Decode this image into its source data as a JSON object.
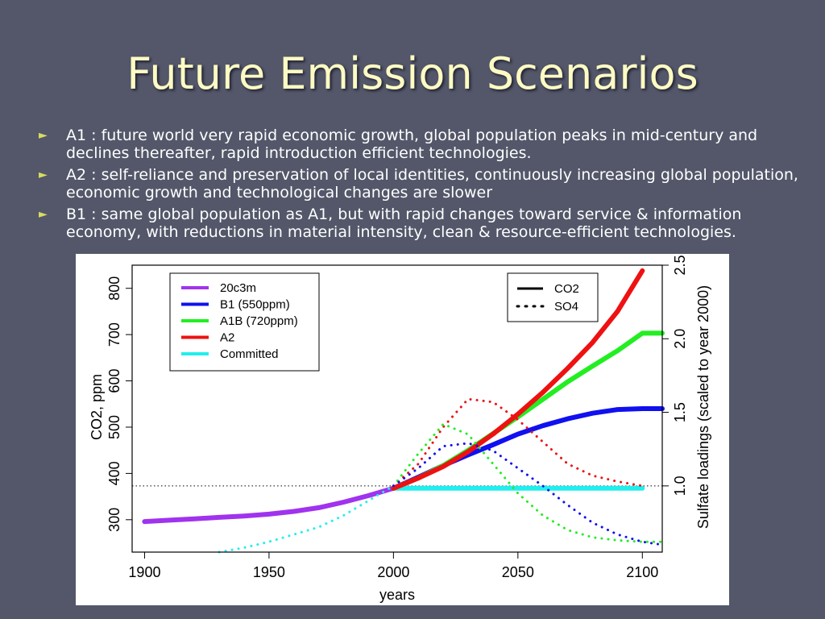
{
  "slide": {
    "title": "Future Emission Scenarios",
    "bullets": [
      "A1 : future world very rapid economic growth, global population peaks in mid-century and declines thereafter, rapid introduction efficient technologies.",
      "A2 : self-reliance and preservation of local identities, continuously increasing global population, economic growth and technological changes are slower",
      "B1 : same global population as A1, but with rapid changes toward service & information economy, with reductions in material intensity, clean & resource-efficient technologies."
    ],
    "bullet_marker": "►"
  },
  "colors": {
    "background": "#535769",
    "title": "#fdfbc3",
    "bullet_marker": "#d7dc63",
    "text": "#ffffff"
  },
  "chart_data": {
    "type": "line",
    "xlabel": "years",
    "ylabel": "CO2, ppm",
    "y2label": "Sulfate loadings (scaled to year 2000)",
    "xlim": [
      1895,
      2108
    ],
    "ylim": [
      230,
      850
    ],
    "y2lim": [
      0.55,
      2.5
    ],
    "x_ticks": [
      1900,
      1950,
      2000,
      2050,
      2100
    ],
    "y_ticks": [
      300,
      400,
      500,
      600,
      700,
      800
    ],
    "y2_ticks": [
      "1.0",
      "1.5",
      "2.0",
      "2.5"
    ],
    "reference_line": {
      "sulfate": 1.0,
      "style": "dotted"
    },
    "legend_scenarios": {
      "position": "top-left",
      "entries": [
        {
          "label": "20c3m",
          "color": "#a033ee"
        },
        {
          "label": "B1 (550ppm)",
          "color": "#1010f0"
        },
        {
          "label": "A1B (720ppm)",
          "color": "#22ee22"
        },
        {
          "label": "A2",
          "color": "#ee1111"
        },
        {
          "label": "Committed",
          "color": "#22eeee"
        }
      ]
    },
    "legend_quantities": {
      "position": "top-right",
      "entries": [
        {
          "label": "CO2",
          "style": "solid"
        },
        {
          "label": "SO4",
          "style": "dotted"
        }
      ]
    },
    "series": [
      {
        "name": "20c3m",
        "quantity": "CO2",
        "color": "#a033ee",
        "x": [
          1900,
          1910,
          1920,
          1930,
          1940,
          1950,
          1960,
          1970,
          1980,
          1990,
          2000
        ],
        "y": [
          296,
          299,
          302,
          305,
          308,
          312,
          318,
          326,
          338,
          352,
          368
        ]
      },
      {
        "name": "Committed",
        "quantity": "CO2",
        "color": "#22eeee",
        "x": [
          2000,
          2100
        ],
        "y": [
          368,
          368
        ]
      },
      {
        "name": "B1 (550ppm)",
        "quantity": "CO2",
        "color": "#1010f0",
        "x": [
          2000,
          2010,
          2020,
          2030,
          2040,
          2050,
          2060,
          2070,
          2080,
          2090,
          2100,
          2108
        ],
        "y": [
          368,
          392,
          417,
          440,
          462,
          485,
          503,
          518,
          530,
          538,
          540,
          540
        ]
      },
      {
        "name": "A1B (720ppm)",
        "quantity": "CO2",
        "color": "#22ee22",
        "x": [
          2000,
          2010,
          2020,
          2030,
          2040,
          2050,
          2060,
          2070,
          2080,
          2090,
          2100,
          2108
        ],
        "y": [
          368,
          390,
          417,
          450,
          486,
          522,
          560,
          598,
          632,
          665,
          703,
          703
        ]
      },
      {
        "name": "A2",
        "quantity": "CO2",
        "color": "#ee1111",
        "x": [
          2000,
          2010,
          2020,
          2030,
          2040,
          2050,
          2060,
          2070,
          2080,
          2090,
          2100
        ],
        "y": [
          368,
          390,
          415,
          447,
          485,
          528,
          575,
          627,
          683,
          750,
          838
        ]
      },
      {
        "name": "Committed",
        "quantity": "SO4",
        "color": "#22eeee",
        "x": [
          1930,
          1940,
          1950,
          1960,
          1970,
          1980,
          1990,
          2000
        ],
        "y": [
          0.55,
          0.58,
          0.62,
          0.67,
          0.72,
          0.8,
          0.9,
          1.0
        ]
      },
      {
        "name": "A2",
        "quantity": "SO4",
        "color": "#ee1111",
        "x": [
          2000,
          2010,
          2020,
          2030,
          2040,
          2050,
          2060,
          2070,
          2080,
          2090,
          2100
        ],
        "y": [
          1.0,
          1.15,
          1.4,
          1.59,
          1.57,
          1.45,
          1.3,
          1.15,
          1.07,
          1.03,
          1.0
        ]
      },
      {
        "name": "A1B (720ppm)",
        "quantity": "SO4",
        "color": "#22ee22",
        "x": [
          2000,
          2010,
          2020,
          2030,
          2040,
          2050,
          2060,
          2070,
          2080,
          2090,
          2100,
          2108
        ],
        "y": [
          1.0,
          1.22,
          1.42,
          1.35,
          1.15,
          0.95,
          0.8,
          0.7,
          0.65,
          0.63,
          0.62,
          0.62
        ]
      },
      {
        "name": "B1 (550ppm)",
        "quantity": "SO4",
        "color": "#1010f0",
        "x": [
          2000,
          2010,
          2020,
          2030,
          2040,
          2050,
          2060,
          2070,
          2080,
          2090,
          2100,
          2108
        ],
        "y": [
          1.0,
          1.12,
          1.27,
          1.29,
          1.24,
          1.12,
          1.0,
          0.87,
          0.75,
          0.67,
          0.62,
          0.6
        ]
      }
    ]
  }
}
